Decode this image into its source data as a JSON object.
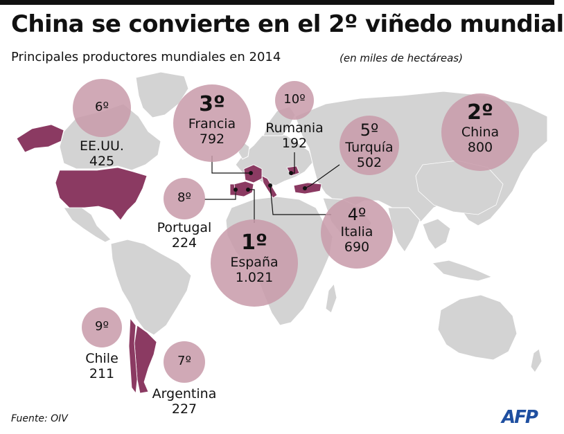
{
  "title": "China se convierte en el 2º viñedo mundial",
  "subtitle": "Principales productores mundiales en 2014",
  "unit_note": "(en miles de hectáreas)",
  "source": "Fuente: OIV",
  "logo": "AFP",
  "colors": {
    "land": "#d3d3d3",
    "highlight_country": "#8b3a62",
    "bubble": "#c89aa9",
    "leader_line": "#111111"
  },
  "producers": [
    {
      "rank": "1º",
      "country": "España",
      "value": "1.021"
    },
    {
      "rank": "2º",
      "country": "China",
      "value": "800"
    },
    {
      "rank": "3º",
      "country": "Francia",
      "value": "792"
    },
    {
      "rank": "4º",
      "country": "Italia",
      "value": "690"
    },
    {
      "rank": "5º",
      "country": "Turquía",
      "value": "502"
    },
    {
      "rank": "6º",
      "country": "EE.UU.",
      "value": "425"
    },
    {
      "rank": "7º",
      "country": "Argentina",
      "value": "227"
    },
    {
      "rank": "8º",
      "country": "Portugal",
      "value": "224"
    },
    {
      "rank": "9º",
      "country": "Chile",
      "value": "211"
    },
    {
      "rank": "10º",
      "country": "Rumania",
      "value": "192"
    }
  ],
  "chart_data": {
    "type": "bubble-map",
    "title": "China se convierte en el 2º viñedo mundial",
    "subtitle": "Principales productores mundiales en 2014",
    "unit": "(en miles de hectáreas)",
    "categories": [
      "España",
      "China",
      "Francia",
      "Italia",
      "Turquía",
      "EE.UU.",
      "Argentina",
      "Portugal",
      "Chile",
      "Rumania"
    ],
    "values": [
      1021,
      800,
      792,
      690,
      502,
      425,
      227,
      224,
      211,
      192
    ]
  }
}
